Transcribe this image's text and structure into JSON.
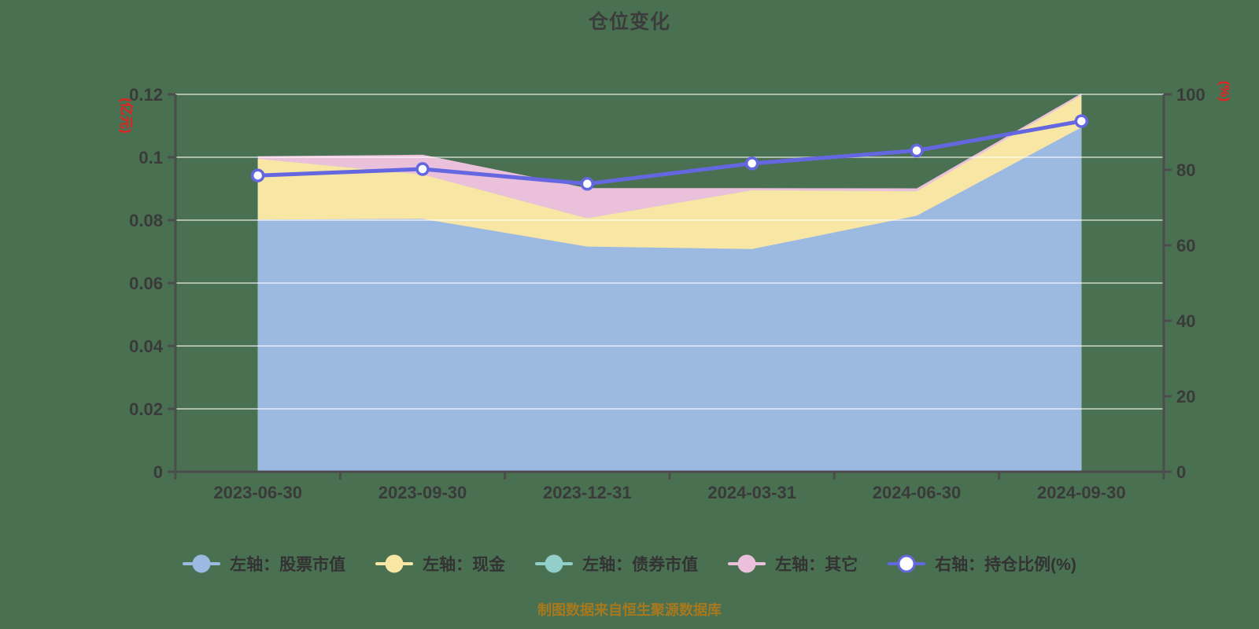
{
  "page": {
    "background_color": "#4a7052",
    "footer": "制图数据来自恒生聚源数据库"
  },
  "chart_data": {
    "type": "area",
    "title": "仓位变化",
    "subtitle": "制图数据来自恒生聚源数据库",
    "grid": true,
    "legend_position": "bottom",
    "categories": [
      "2023-06-30",
      "2023-09-30",
      "2023-12-31",
      "2024-03-31",
      "2024-06-30",
      "2024-09-30"
    ],
    "left_axis": {
      "unit": "(亿元)",
      "min": 0,
      "max": 0.12,
      "ticks": [
        0,
        0.02,
        0.04,
        0.06,
        0.08,
        0.1,
        0.12
      ],
      "tick_labels": [
        "0",
        "0.02",
        "0.04",
        "0.06",
        "0.08",
        "0.1",
        "0.12"
      ]
    },
    "right_axis": {
      "unit": "(%)",
      "min": 0,
      "max": 100,
      "ticks": [
        0,
        20,
        40,
        60,
        80,
        100
      ],
      "tick_labels": [
        "0",
        "20",
        "40",
        "60",
        "80",
        "100"
      ]
    },
    "series": [
      {
        "key": "stock",
        "name": "左轴：股票市值",
        "type": "area",
        "stack": true,
        "axis": "left",
        "color": "#9cb9e2",
        "values": [
          0.0802,
          0.0804,
          0.0716,
          0.0708,
          0.0814,
          0.1095
        ]
      },
      {
        "key": "cash",
        "name": "左轴：现金",
        "type": "area",
        "stack": true,
        "axis": "left",
        "color": "#f8e7a4",
        "values": [
          0.0193,
          0.0141,
          0.009,
          0.0187,
          0.0078,
          0.0102
        ]
      },
      {
        "key": "bond",
        "name": "左轴：债券市值",
        "type": "area",
        "stack": true,
        "axis": "left",
        "color": "#92cfc9",
        "values": [
          0,
          0,
          0,
          0,
          0,
          0
        ]
      },
      {
        "key": "other",
        "name": "左轴：其它",
        "type": "area",
        "stack": true,
        "axis": "left",
        "color": "#eac0db",
        "values": [
          0.0008,
          0.0063,
          0.0096,
          0.0007,
          0.0009,
          0.0006
        ]
      },
      {
        "key": "ratio",
        "name": "右轴：持仓比例(%)",
        "type": "line",
        "axis": "right",
        "color": "#6467e0",
        "marker": "white-circle",
        "values": [
          78.5,
          80.2,
          76.3,
          81.7,
          85.1,
          92.9
        ]
      }
    ],
    "style": {
      "grid_color": "rgba(255,255,255,0.55)",
      "axis_color": "#4c4c4c",
      "tick_label_color": "#3a3a3a",
      "unit_label_color": "#e62020"
    }
  }
}
